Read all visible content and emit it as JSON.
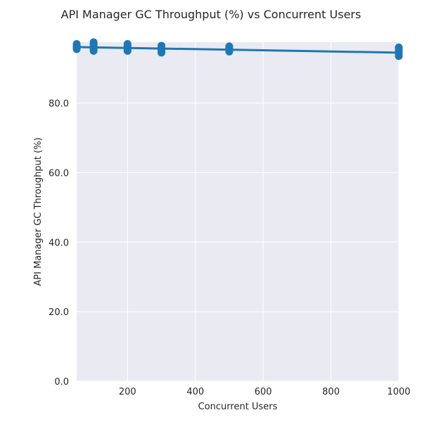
{
  "chart_data": {
    "type": "scatter",
    "title": "API Manager GC Throughput (%) vs Concurrent Users",
    "xlabel": "Concurrent Users",
    "ylabel": "API Manager GC Throughput (%)",
    "xlim": [
      50,
      1000
    ],
    "ylim": [
      0,
      97.5
    ],
    "xticks": [
      200,
      400,
      600,
      800,
      1000
    ],
    "yticks": [
      0,
      20,
      40,
      60,
      80
    ],
    "grid": true,
    "colors": {
      "point": "#1f77b4",
      "line": "#1f77b4",
      "background": "#eaeaf2",
      "grid": "#ffffff"
    },
    "series": [
      {
        "points": [
          [
            50,
            95.5
          ],
          [
            50,
            96.0
          ],
          [
            50,
            96.5
          ],
          [
            50,
            97.0
          ],
          [
            100,
            95.0
          ],
          [
            100,
            95.5
          ],
          [
            100,
            96.5
          ],
          [
            100,
            97.0
          ],
          [
            100,
            97.5
          ],
          [
            200,
            95.0
          ],
          [
            200,
            95.5
          ],
          [
            200,
            96.0
          ],
          [
            200,
            96.5
          ],
          [
            200,
            97.0
          ],
          [
            300,
            94.5
          ],
          [
            300,
            95.0
          ],
          [
            300,
            95.5
          ],
          [
            300,
            96.0
          ],
          [
            300,
            96.5
          ],
          [
            500,
            94.8
          ],
          [
            500,
            95.3
          ],
          [
            500,
            95.8
          ],
          [
            500,
            96.3
          ],
          [
            1000,
            93.5
          ],
          [
            1000,
            94.2
          ],
          [
            1000,
            95.0
          ],
          [
            1000,
            95.6
          ],
          [
            1000,
            96.0
          ]
        ]
      }
    ],
    "trend_line": {
      "x": [
        50,
        1000
      ],
      "y": [
        96.1,
        94.5
      ]
    }
  }
}
